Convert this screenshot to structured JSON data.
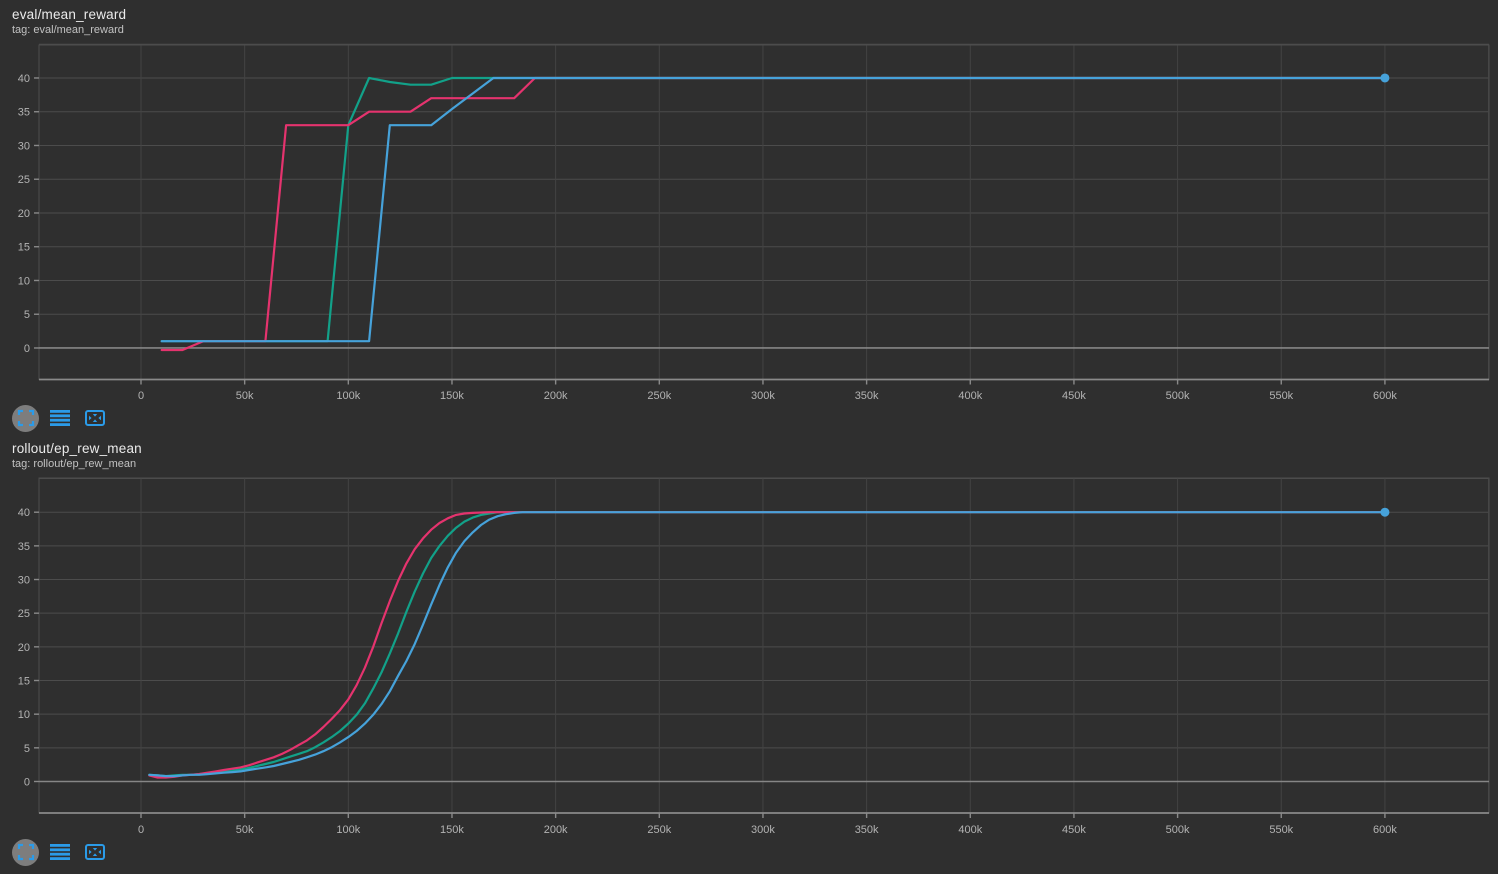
{
  "colors": {
    "background": "#2f2f2f",
    "grid_h": "#4c4c4c",
    "grid_v": "#434343",
    "plot_border": "#4c4c4c",
    "zero_line": "#868686",
    "axis_line": "#8a8a8a",
    "tick_label": "#b3b3b3",
    "icon_blue": "#2b9be8",
    "icon_circle_bg": "#7d7d7d",
    "run_pink": "#e5336e",
    "run_teal": "#12a189",
    "run_blue": "#46a2da"
  },
  "toolbar": {
    "buttons": [
      {
        "name": "expand-card-button",
        "icon": "viewfinder-icon"
      },
      {
        "name": "data-table-toggle-button",
        "icon": "data-table-icon"
      },
      {
        "name": "fit-domain-button",
        "icon": "fit-to-frame-icon"
      }
    ]
  },
  "chart_data": [
    {
      "type": "line",
      "title": "eval/mean_reward",
      "tag": "tag: eval/mean_reward",
      "x_unit": "steps (k = thousands)",
      "xlim_k": [
        -49,
        650.5
      ],
      "ylim": [
        -4.67,
        44.9
      ],
      "grid": true,
      "legend": "none",
      "x_tick_k": [
        0,
        50,
        100,
        150,
        200,
        250,
        300,
        350,
        400,
        450,
        500,
        550,
        600
      ],
      "x_tick_labels": [
        "0",
        "50k",
        "100k",
        "150k",
        "200k",
        "250k",
        "300k",
        "350k",
        "400k",
        "450k",
        "500k",
        "550k",
        "600k"
      ],
      "yticks": [
        0,
        5,
        10,
        15,
        20,
        25,
        30,
        35,
        40
      ],
      "series": [
        {
          "name": "teal-run",
          "color": "#12a189",
          "points_k_v": [
            [
              10,
              1
            ],
            [
              20,
              1
            ],
            [
              30,
              1
            ],
            [
              40,
              1
            ],
            [
              50,
              1
            ],
            [
              60,
              1
            ],
            [
              70,
              1
            ],
            [
              80,
              1
            ],
            [
              90,
              1
            ],
            [
              100,
              33
            ],
            [
              110,
              40
            ],
            [
              120,
              39.4
            ],
            [
              130,
              39
            ],
            [
              140,
              39
            ],
            [
              150,
              40
            ],
            [
              160,
              40
            ],
            [
              170,
              40
            ],
            [
              180,
              40
            ],
            [
              190,
              40
            ],
            [
              200,
              40
            ],
            [
              250,
              40
            ],
            [
              300,
              40
            ],
            [
              350,
              40
            ],
            [
              400,
              40
            ],
            [
              450,
              40
            ],
            [
              500,
              40
            ],
            [
              550,
              40
            ],
            [
              600,
              40
            ]
          ]
        },
        {
          "name": "pink-run",
          "color": "#e5336e",
          "points_k_v": [
            [
              10,
              -0.3
            ],
            [
              20,
              -0.3
            ],
            [
              30,
              1
            ],
            [
              40,
              1
            ],
            [
              50,
              1
            ],
            [
              60,
              1
            ],
            [
              70,
              33
            ],
            [
              80,
              33
            ],
            [
              90,
              33
            ],
            [
              100,
              33
            ],
            [
              110,
              35
            ],
            [
              120,
              35
            ],
            [
              130,
              35
            ],
            [
              140,
              37
            ],
            [
              150,
              37
            ],
            [
              160,
              37
            ],
            [
              170,
              37
            ],
            [
              180,
              37
            ],
            [
              190,
              40
            ],
            [
              200,
              40
            ],
            [
              250,
              40
            ],
            [
              300,
              40
            ],
            [
              350,
              40
            ],
            [
              400,
              40
            ],
            [
              450,
              40
            ],
            [
              500,
              40
            ],
            [
              550,
              40
            ],
            [
              600,
              40
            ]
          ]
        },
        {
          "name": "blue-run",
          "color": "#46a2da",
          "points_k_v": [
            [
              10,
              1
            ],
            [
              20,
              1
            ],
            [
              30,
              1
            ],
            [
              40,
              1
            ],
            [
              50,
              1
            ],
            [
              60,
              1
            ],
            [
              70,
              1
            ],
            [
              80,
              1
            ],
            [
              90,
              1
            ],
            [
              100,
              1
            ],
            [
              110,
              1
            ],
            [
              120,
              33
            ],
            [
              130,
              33
            ],
            [
              140,
              33
            ],
            [
              150,
              35.4
            ],
            [
              160,
              37.7
            ],
            [
              170,
              40
            ],
            [
              180,
              40
            ],
            [
              190,
              40
            ],
            [
              200,
              40
            ],
            [
              250,
              40
            ],
            [
              300,
              40
            ],
            [
              350,
              40
            ],
            [
              400,
              40
            ],
            [
              450,
              40
            ],
            [
              500,
              40
            ],
            [
              550,
              40
            ],
            [
              600,
              40
            ]
          ]
        }
      ],
      "end_marker": {
        "series": "blue-run",
        "k": 600,
        "v": 40
      }
    },
    {
      "type": "line",
      "title": "rollout/ep_rew_mean",
      "tag": "tag: rollout/ep_rew_mean",
      "x_unit": "steps (k = thousands)",
      "xlim_k": [
        -49,
        650.5
      ],
      "ylim": [
        -4.68,
        45.1
      ],
      "grid": true,
      "legend": "none",
      "x_tick_k": [
        0,
        50,
        100,
        150,
        200,
        250,
        300,
        350,
        400,
        450,
        500,
        550,
        600
      ],
      "x_tick_labels": [
        "0",
        "50k",
        "100k",
        "150k",
        "200k",
        "250k",
        "300k",
        "350k",
        "400k",
        "450k",
        "500k",
        "550k",
        "600k"
      ],
      "yticks": [
        0,
        5,
        10,
        15,
        20,
        25,
        30,
        35,
        40
      ],
      "series": [
        {
          "name": "teal-run",
          "color": "#12a189",
          "points_k_v": [
            [
              4,
              1.0
            ],
            [
              8,
              0.9
            ],
            [
              12,
              0.8
            ],
            [
              16,
              0.9
            ],
            [
              20,
              1.0
            ],
            [
              24,
              1.0
            ],
            [
              28,
              1.1
            ],
            [
              32,
              1.2
            ],
            [
              36,
              1.3
            ],
            [
              40,
              1.5
            ],
            [
              44,
              1.6
            ],
            [
              48,
              1.8
            ],
            [
              52,
              2.0
            ],
            [
              56,
              2.3
            ],
            [
              60,
              2.6
            ],
            [
              64,
              2.9
            ],
            [
              68,
              3.3
            ],
            [
              72,
              3.7
            ],
            [
              76,
              4.1
            ],
            [
              80,
              4.5
            ],
            [
              84,
              5.1
            ],
            [
              88,
              5.8
            ],
            [
              92,
              6.6
            ],
            [
              96,
              7.5
            ],
            [
              100,
              8.6
            ],
            [
              104,
              9.9
            ],
            [
              108,
              11.6
            ],
            [
              112,
              13.8
            ],
            [
              116,
              16.2
            ],
            [
              120,
              19.0
            ],
            [
              124,
              22.0
            ],
            [
              128,
              25.2
            ],
            [
              132,
              28.2
            ],
            [
              136,
              30.9
            ],
            [
              140,
              33.2
            ],
            [
              144,
              35.0
            ],
            [
              148,
              36.5
            ],
            [
              152,
              37.7
            ],
            [
              156,
              38.6
            ],
            [
              160,
              39.2
            ],
            [
              164,
              39.6
            ],
            [
              168,
              39.8
            ],
            [
              172,
              40
            ],
            [
              180,
              40
            ],
            [
              200,
              40
            ],
            [
              250,
              40
            ],
            [
              300,
              40
            ],
            [
              350,
              40
            ],
            [
              400,
              40
            ],
            [
              450,
              40
            ],
            [
              500,
              40
            ],
            [
              550,
              40
            ],
            [
              600,
              40
            ]
          ]
        },
        {
          "name": "pink-run",
          "color": "#e5336e",
          "points_k_v": [
            [
              4,
              0.9
            ],
            [
              8,
              0.6
            ],
            [
              12,
              0.6
            ],
            [
              16,
              0.7
            ],
            [
              20,
              0.9
            ],
            [
              24,
              1.0
            ],
            [
              28,
              1.1
            ],
            [
              32,
              1.3
            ],
            [
              36,
              1.5
            ],
            [
              40,
              1.7
            ],
            [
              44,
              1.9
            ],
            [
              48,
              2.1
            ],
            [
              52,
              2.4
            ],
            [
              56,
              2.8
            ],
            [
              60,
              3.2
            ],
            [
              64,
              3.6
            ],
            [
              68,
              4.1
            ],
            [
              72,
              4.7
            ],
            [
              76,
              5.4
            ],
            [
              80,
              6.1
            ],
            [
              84,
              7.0
            ],
            [
              88,
              8.1
            ],
            [
              92,
              9.3
            ],
            [
              96,
              10.6
            ],
            [
              100,
              12.2
            ],
            [
              104,
              14.3
            ],
            [
              108,
              16.9
            ],
            [
              112,
              20.0
            ],
            [
              116,
              23.5
            ],
            [
              120,
              26.8
            ],
            [
              124,
              29.8
            ],
            [
              128,
              32.4
            ],
            [
              132,
              34.5
            ],
            [
              136,
              36.1
            ],
            [
              140,
              37.4
            ],
            [
              144,
              38.4
            ],
            [
              148,
              39.1
            ],
            [
              152,
              39.6
            ],
            [
              156,
              39.8
            ],
            [
              160,
              39.9
            ],
            [
              168,
              40
            ],
            [
              180,
              40
            ],
            [
              200,
              40
            ],
            [
              250,
              40
            ],
            [
              300,
              40
            ],
            [
              350,
              40
            ],
            [
              400,
              40
            ],
            [
              450,
              40
            ],
            [
              500,
              40
            ],
            [
              550,
              40
            ],
            [
              600,
              40
            ]
          ]
        },
        {
          "name": "blue-run",
          "color": "#46a2da",
          "points_k_v": [
            [
              4,
              1.0
            ],
            [
              8,
              0.9
            ],
            [
              12,
              0.8
            ],
            [
              16,
              0.8
            ],
            [
              20,
              0.9
            ],
            [
              24,
              1.0
            ],
            [
              28,
              1.0
            ],
            [
              32,
              1.1
            ],
            [
              36,
              1.2
            ],
            [
              40,
              1.3
            ],
            [
              44,
              1.4
            ],
            [
              48,
              1.5
            ],
            [
              52,
              1.7
            ],
            [
              56,
              1.9
            ],
            [
              60,
              2.1
            ],
            [
              64,
              2.3
            ],
            [
              68,
              2.6
            ],
            [
              72,
              2.9
            ],
            [
              76,
              3.2
            ],
            [
              80,
              3.6
            ],
            [
              84,
              4.0
            ],
            [
              88,
              4.5
            ],
            [
              92,
              5.1
            ],
            [
              96,
              5.8
            ],
            [
              100,
              6.6
            ],
            [
              104,
              7.5
            ],
            [
              108,
              8.6
            ],
            [
              112,
              9.9
            ],
            [
              116,
              11.5
            ],
            [
              120,
              13.4
            ],
            [
              124,
              15.7
            ],
            [
              128,
              17.9
            ],
            [
              132,
              20.4
            ],
            [
              136,
              23.3
            ],
            [
              140,
              26.3
            ],
            [
              144,
              29.2
            ],
            [
              148,
              31.8
            ],
            [
              152,
              34.0
            ],
            [
              156,
              35.7
            ],
            [
              160,
              37.0
            ],
            [
              164,
              38.1
            ],
            [
              168,
              38.9
            ],
            [
              172,
              39.4
            ],
            [
              176,
              39.7
            ],
            [
              180,
              39.9
            ],
            [
              184,
              40
            ],
            [
              200,
              40
            ],
            [
              250,
              40
            ],
            [
              300,
              40
            ],
            [
              350,
              40
            ],
            [
              400,
              40
            ],
            [
              450,
              40
            ],
            [
              500,
              40
            ],
            [
              550,
              40
            ],
            [
              600,
              40
            ]
          ]
        }
      ],
      "end_marker": {
        "series": "blue-run",
        "k": 600,
        "v": 40
      }
    }
  ]
}
